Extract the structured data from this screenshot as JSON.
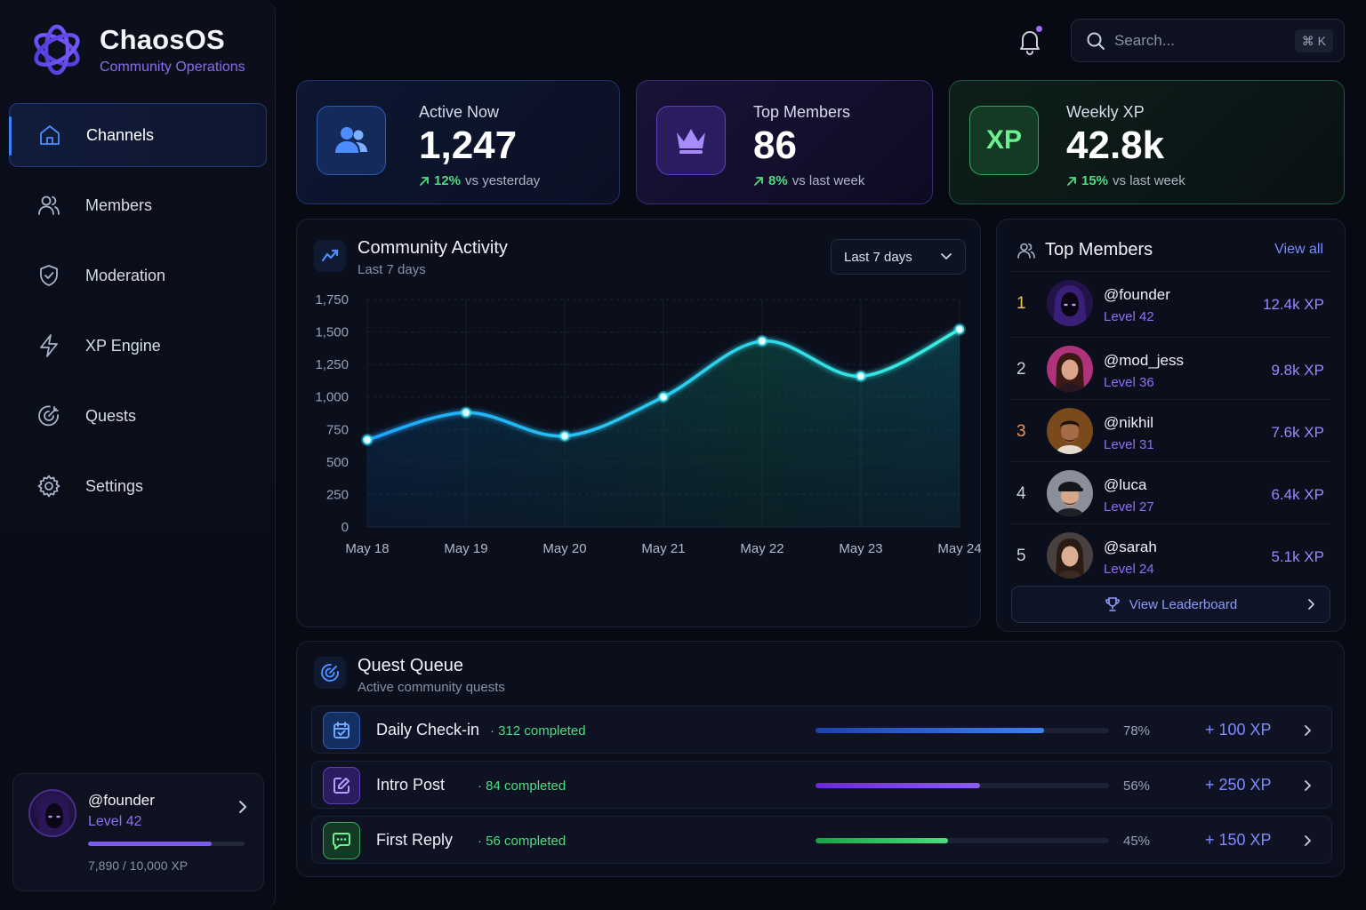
{
  "brand": {
    "name": "ChaosOS",
    "subtitle": "Community Operations"
  },
  "nav": [
    {
      "label": "Channels",
      "icon": "home-icon",
      "active": true
    },
    {
      "label": "Members",
      "icon": "users-icon",
      "active": false
    },
    {
      "label": "Moderation",
      "icon": "shield-icon",
      "active": false
    },
    {
      "label": "XP Engine",
      "icon": "lightning-icon",
      "active": false
    },
    {
      "label": "Quests",
      "icon": "target-icon",
      "active": false
    },
    {
      "label": "Settings",
      "icon": "gear-icon",
      "active": false
    }
  ],
  "profile": {
    "handle": "@founder",
    "level": "Level 42",
    "xp_text": "7,890 / 10,000 XP",
    "xp_progress": 0.789
  },
  "search": {
    "placeholder": "Search...",
    "shortcut": "⌘ K"
  },
  "stats": [
    {
      "label": "Active Now",
      "value": "1,247",
      "delta": "12%",
      "delta_text": "vs yesterday",
      "icon": "users-icon"
    },
    {
      "label": "Top Members",
      "value": "86",
      "delta": "8%",
      "delta_text": "vs last week",
      "icon": "crown-icon"
    },
    {
      "label": "Weekly XP",
      "value": "42.8k",
      "delta": "15%",
      "delta_text": "vs last week",
      "icon": "xp-icon",
      "icon_text": "XP"
    }
  ],
  "activity": {
    "title": "Community Activity",
    "subtitle": "Last 7 days",
    "range_selected": "Last 7 days"
  },
  "chart_data": {
    "type": "area",
    "title": "Community Activity",
    "x": [
      "May 18",
      "May 19",
      "May 20",
      "May 21",
      "May 22",
      "May 23",
      "May 24"
    ],
    "values": [
      670,
      880,
      700,
      1000,
      1430,
      1160,
      1520
    ],
    "ylim": [
      0,
      1750
    ],
    "yticks": [
      0,
      250,
      500,
      750,
      1000,
      1250,
      1500,
      1750
    ],
    "ytick_labels": [
      "0",
      "250",
      "500",
      "750",
      "1,000",
      "1,250",
      "1,500",
      "1,750"
    ],
    "grid": true
  },
  "top_members": {
    "title": "Top Members",
    "view_all": "View all",
    "rows": [
      {
        "rank": "1",
        "handle": "@founder",
        "level": "Level 42",
        "xp": "12.4k XP"
      },
      {
        "rank": "2",
        "handle": "@mod_jess",
        "level": "Level 36",
        "xp": "9.8k XP"
      },
      {
        "rank": "3",
        "handle": "@nikhil",
        "level": "Level 31",
        "xp": "7.6k XP"
      },
      {
        "rank": "4",
        "handle": "@luca",
        "level": "Level 27",
        "xp": "6.4k XP"
      },
      {
        "rank": "5",
        "handle": "@sarah",
        "level": "Level 24",
        "xp": "5.1k XP"
      }
    ],
    "leaderboard_button": "View Leaderboard"
  },
  "quests": {
    "title": "Quest Queue",
    "subtitle": "Active community quests",
    "rows": [
      {
        "name": "Daily Check-in",
        "completed": "312 completed",
        "pct": "78%",
        "progress": 0.78,
        "xp": "+ 100 XP",
        "icon": "calendar-check-icon",
        "color": "#3b82f6"
      },
      {
        "name": "Intro Post",
        "completed": "84 completed",
        "pct": "56%",
        "progress": 0.56,
        "xp": "+ 250 XP",
        "icon": "edit-icon",
        "color": "#8b5cf6"
      },
      {
        "name": "First Reply",
        "completed": "56 completed",
        "pct": "45%",
        "progress": 0.45,
        "xp": "+ 150 XP",
        "icon": "chat-icon",
        "color": "#4ade80"
      }
    ]
  }
}
